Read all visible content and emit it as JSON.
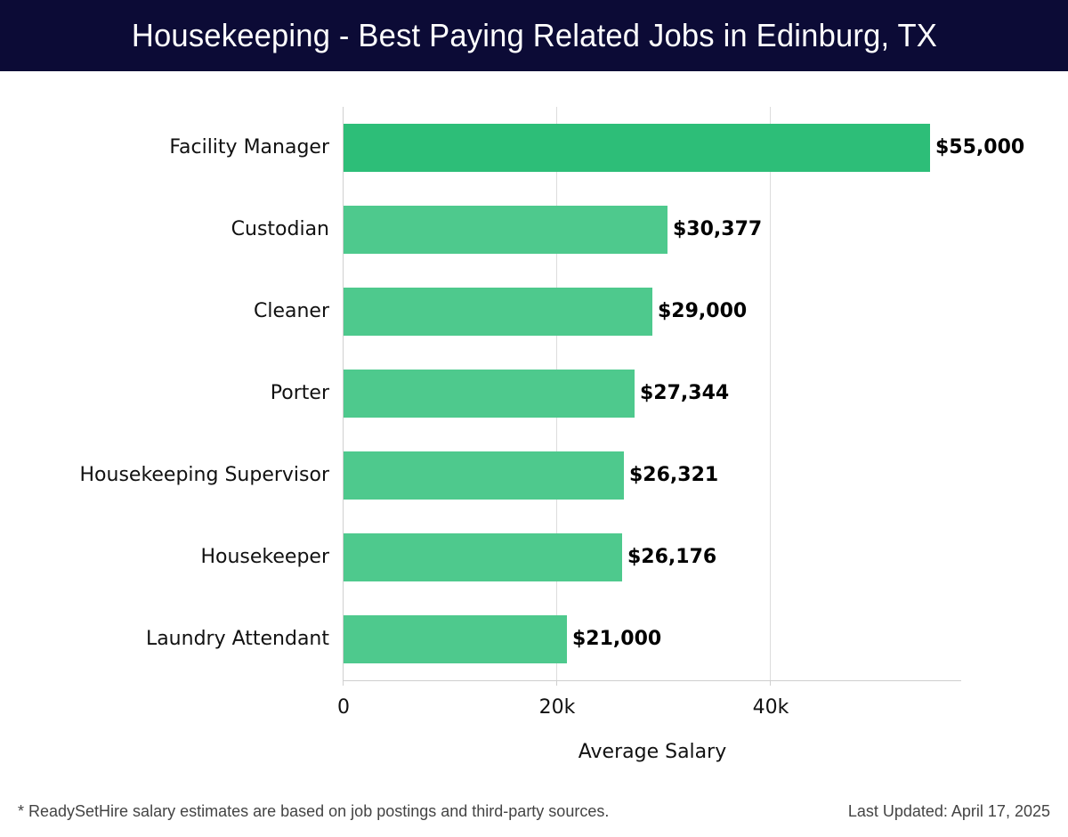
{
  "header": {
    "title": "Housekeeping - Best Paying Related Jobs in Edinburg, TX"
  },
  "colors": {
    "header_bg": "#0c0b36",
    "bar_top": "#2dbe78",
    "bar": "#4ec98d"
  },
  "chart_data": {
    "type": "bar",
    "orientation": "horizontal",
    "title": "Housekeeping - Best Paying Related Jobs in Edinburg, TX",
    "xlabel": "Average Salary",
    "ylabel": "",
    "categories": [
      "Facility Manager",
      "Custodian",
      "Cleaner",
      "Porter",
      "Housekeeping Supervisor",
      "Housekeeper",
      "Laundry Attendant"
    ],
    "values": [
      55000,
      30377,
      29000,
      27344,
      26321,
      26176,
      21000
    ],
    "value_labels": [
      "$55,000",
      "$30,377",
      "$29,000",
      "$27,344",
      "$26,321",
      "$26,176",
      "$21,000"
    ],
    "xticks": [
      "0",
      "20k",
      "40k"
    ],
    "xtick_values": [
      0,
      20000,
      40000
    ],
    "xlim": [
      0,
      57900
    ],
    "grid": "vertical",
    "legend": null
  },
  "footer": {
    "note": "* ReadySetHire salary estimates are based on job postings and third-party sources.",
    "updated": "Last Updated: April 17, 2025"
  }
}
